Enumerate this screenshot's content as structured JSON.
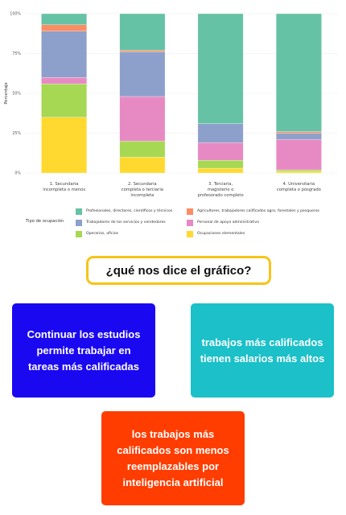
{
  "chart_data": {
    "type": "bar",
    "stacked": true,
    "ylabel": "Porcentaje",
    "yticks": [
      "0%",
      "25%",
      "50%",
      "75%",
      "100%"
    ],
    "ylim": [
      0,
      100
    ],
    "categories": [
      [
        "1. Secundaria",
        "incompleta o menos"
      ],
      [
        "2. Secundaria",
        "completa o terciaria",
        "incompleta"
      ],
      [
        "3. Terciaria,",
        "magisterio o",
        "profesorado completo"
      ],
      [
        "4. Universitaria",
        "completa o posgrado"
      ]
    ],
    "legend_title": "Tipo de ocupación",
    "series": [
      {
        "name": "Ocupaciones elementales",
        "color": "#ffd92f",
        "values": [
          35,
          10,
          3,
          1
        ]
      },
      {
        "name": "Operarios, oficios",
        "color": "#a6d854",
        "values": [
          21,
          10,
          5,
          1
        ]
      },
      {
        "name": "Personal de apoyo administrativo",
        "color": "#e78ac3",
        "values": [
          4,
          28,
          11,
          19
        ]
      },
      {
        "name": "Trabajadores de los servicios y vendedores",
        "color": "#8da0cb",
        "values": [
          29,
          28,
          12,
          4
        ]
      },
      {
        "name": "Agricultores, trabajadores calificados agro, forestales y pesqueros",
        "color": "#fc8d62",
        "values": [
          4,
          1,
          0,
          1
        ]
      },
      {
        "name": "Profesionales, directores, científicos y técnicos",
        "color": "#66c2a5",
        "values": [
          7,
          23,
          69,
          74
        ]
      }
    ]
  },
  "legend": {
    "title": "Tipo de ocupación",
    "items": [
      {
        "label": "Profesionales, directores, científicos y técnicos",
        "color": "#66c2a5"
      },
      {
        "label": "Agricultores, trabajadores calificados agro, forestales y pesqueros",
        "color": "#fc8d62"
      },
      {
        "label": "Trabajadores de los servicios y vendedores",
        "color": "#8da0cb"
      },
      {
        "label": "Personal de apoyo administrativo",
        "color": "#e78ac3"
      },
      {
        "label": "Operarios, oficios",
        "color": "#a6d854"
      },
      {
        "label": "Ocupaciones elementales",
        "color": "#ffd92f"
      }
    ]
  },
  "question": "¿qué nos dice el gráfico?",
  "cards": [
    {
      "text": "Continuar los estudios permite trabajar en tareas más calificadas",
      "color": "#1a08f0"
    },
    {
      "text": "trabajos más calificados tienen salarios más altos",
      "color": "#1bc0c8"
    },
    {
      "text": "los trabajos más calificados son menos reemplazables por inteligencia artificial",
      "color": "#ff3d00"
    }
  ]
}
